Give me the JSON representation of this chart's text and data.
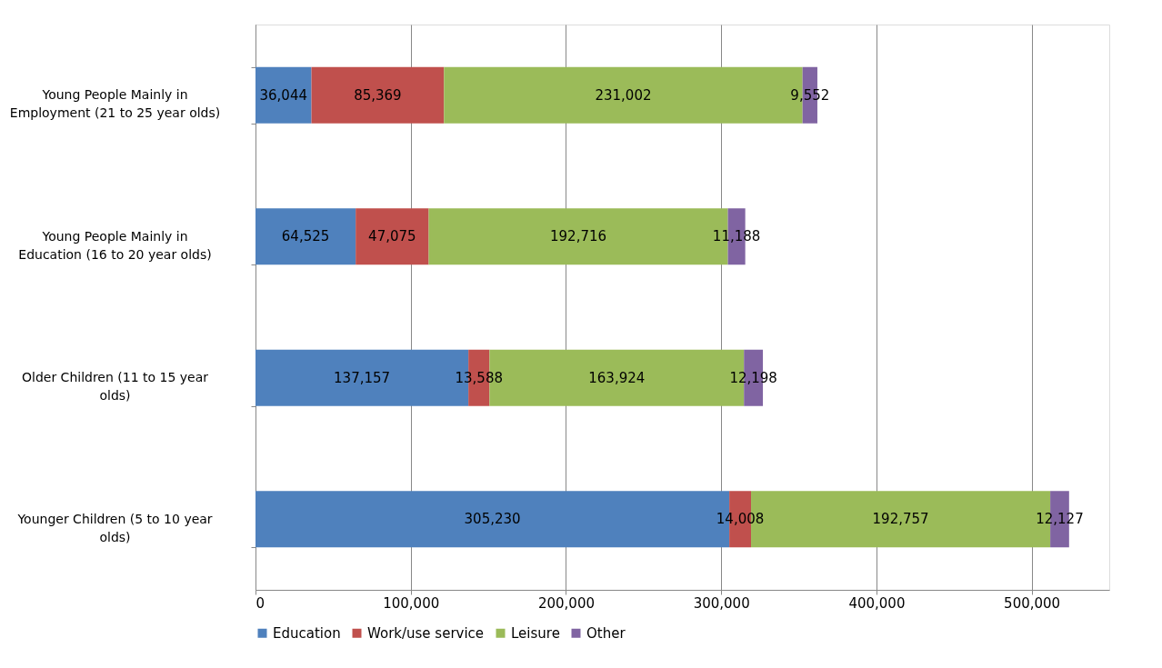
{
  "chart_data": {
    "type": "bar",
    "orientation": "horizontal",
    "stacked": true,
    "categories": [
      "Young People Mainly in Employment (21 to 25 year olds)",
      "Young People Mainly in Education (16 to 20 year olds)",
      "Older Children (11 to 15 year olds)",
      "Younger Children (5 to 10 year olds)"
    ],
    "series": [
      {
        "name": "Education",
        "color": "#4f81bd",
        "values": [
          36044,
          64525,
          137157,
          305230
        ],
        "value_labels": [
          "36,044",
          "64,525",
          "137,157",
          "305,230"
        ]
      },
      {
        "name": "Work/use service",
        "color": "#c0504d",
        "values": [
          85369,
          47075,
          13588,
          14008
        ],
        "value_labels": [
          "85,369",
          "47,075",
          "13,588",
          "14,008"
        ]
      },
      {
        "name": "Leisure",
        "color": "#9bbb59",
        "values": [
          231002,
          192716,
          163924,
          192757
        ],
        "value_labels": [
          "231,002",
          "192,716",
          "163,924",
          "192,757"
        ]
      },
      {
        "name": "Other",
        "color": "#8064a2",
        "values": [
          9552,
          11188,
          12198,
          12127
        ],
        "value_labels": [
          "9,552",
          "11,188",
          "12,198",
          "12,127"
        ]
      }
    ],
    "xlim": [
      0,
      550000
    ],
    "xticks": [
      0,
      {
        "value": 100000,
        "label": "100,000"
      },
      {
        "value": 200000,
        "label": "200,000"
      },
      {
        "value": 300000,
        "label": "300,000"
      },
      {
        "value": 400000,
        "label": "400,000"
      },
      {
        "value": 500000,
        "label": "500,000"
      }
    ],
    "grid": "x",
    "legend": "bottom"
  }
}
